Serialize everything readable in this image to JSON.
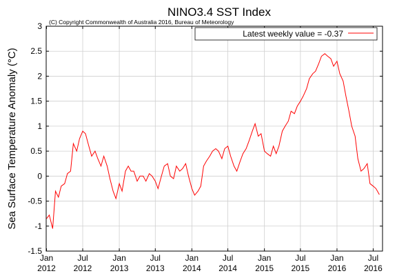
{
  "chart_data": {
    "type": "line",
    "title": "NINO3.4 SST Index",
    "subtitle": "(C) Copyright Commonwealth of Australia 2016, Bureau of Meteorology",
    "xlabel": "",
    "ylabel": "Sea Surface Temperature Anomaly",
    "ylabel_unit": "(°C)",
    "ylim": [
      -1.5,
      3
    ],
    "y_ticks": [
      "-1.5",
      "-1",
      "-0.5",
      "0",
      "0.5",
      "1",
      "1.5",
      "2",
      "2.5",
      "3"
    ],
    "x_ticks": [
      {
        "month": "Jan",
        "year": "2012"
      },
      {
        "month": "Jul",
        "year": "2012"
      },
      {
        "month": "Jan",
        "year": "2013"
      },
      {
        "month": "Jul",
        "year": "2013"
      },
      {
        "month": "Jan",
        "year": "2014"
      },
      {
        "month": "Jul",
        "year": "2014"
      },
      {
        "month": "Jan",
        "year": "2015"
      },
      {
        "month": "Jul",
        "year": "2015"
      },
      {
        "month": "Jan",
        "year": "2016"
      },
      {
        "month": "Jul",
        "year": "2016"
      }
    ],
    "grid": true,
    "legend": {
      "placement": "top-right",
      "label": "Latest weekly value = -0.37"
    },
    "series": [
      {
        "color": "#ff0000",
        "x": [
          "2012-01-01",
          "2012-01-15",
          "2012-02-01",
          "2012-02-15",
          "2012-03-01",
          "2012-03-15",
          "2012-04-01",
          "2012-04-15",
          "2012-05-01",
          "2012-05-15",
          "2012-06-01",
          "2012-06-15",
          "2012-07-01",
          "2012-07-15",
          "2012-08-01",
          "2012-08-15",
          "2012-09-01",
          "2012-09-15",
          "2012-10-01",
          "2012-10-15",
          "2012-11-01",
          "2012-11-15",
          "2012-12-01",
          "2012-12-15",
          "2013-01-01",
          "2013-01-15",
          "2013-02-01",
          "2013-02-15",
          "2013-03-01",
          "2013-03-15",
          "2013-04-01",
          "2013-04-15",
          "2013-05-01",
          "2013-05-15",
          "2013-06-01",
          "2013-06-15",
          "2013-07-01",
          "2013-07-15",
          "2013-08-01",
          "2013-08-15",
          "2013-09-01",
          "2013-09-15",
          "2013-10-01",
          "2013-10-15",
          "2013-11-01",
          "2013-11-15",
          "2013-12-01",
          "2013-12-15",
          "2014-01-01",
          "2014-01-15",
          "2014-02-01",
          "2014-02-15",
          "2014-03-01",
          "2014-03-15",
          "2014-04-01",
          "2014-04-15",
          "2014-05-01",
          "2014-05-15",
          "2014-06-01",
          "2014-06-15",
          "2014-07-01",
          "2014-07-15",
          "2014-08-01",
          "2014-08-15",
          "2014-09-01",
          "2014-09-15",
          "2014-10-01",
          "2014-10-15",
          "2014-11-01",
          "2014-11-15",
          "2014-12-01",
          "2014-12-15",
          "2015-01-01",
          "2015-01-15",
          "2015-02-01",
          "2015-02-15",
          "2015-03-01",
          "2015-03-15",
          "2015-04-01",
          "2015-04-15",
          "2015-05-01",
          "2015-05-15",
          "2015-06-01",
          "2015-06-15",
          "2015-07-01",
          "2015-07-15",
          "2015-08-01",
          "2015-08-15",
          "2015-09-01",
          "2015-09-15",
          "2015-10-01",
          "2015-10-15",
          "2015-11-01",
          "2015-11-15",
          "2015-12-01",
          "2015-12-15",
          "2016-01-01",
          "2016-01-15",
          "2016-02-01",
          "2016-02-15",
          "2016-03-01",
          "2016-03-15",
          "2016-04-01",
          "2016-04-15",
          "2016-05-01",
          "2016-05-15",
          "2016-06-01",
          "2016-06-15",
          "2016-07-01",
          "2016-07-15",
          "2016-08-01"
        ],
        "y": [
          -0.85,
          -0.78,
          -1.05,
          -0.3,
          -0.42,
          -0.2,
          -0.15,
          0.05,
          0.1,
          0.65,
          0.5,
          0.75,
          0.9,
          0.85,
          0.6,
          0.4,
          0.5,
          0.35,
          0.2,
          0.4,
          0.2,
          -0.05,
          -0.3,
          -0.45,
          -0.15,
          -0.3,
          0.1,
          0.2,
          0.1,
          0.1,
          -0.1,
          0.0,
          0.0,
          -0.1,
          0.05,
          0.0,
          -0.1,
          -0.25,
          0.0,
          0.2,
          0.25,
          0.0,
          -0.05,
          0.2,
          0.1,
          0.15,
          0.25,
          0.0,
          -0.25,
          -0.38,
          -0.3,
          -0.2,
          0.2,
          0.3,
          0.4,
          0.5,
          0.55,
          0.5,
          0.35,
          0.55,
          0.6,
          0.4,
          0.2,
          0.1,
          0.3,
          0.45,
          0.55,
          0.7,
          0.9,
          1.05,
          0.8,
          0.85,
          0.5,
          0.45,
          0.4,
          0.6,
          0.45,
          0.6,
          0.9,
          1.0,
          1.1,
          1.3,
          1.25,
          1.4,
          1.5,
          1.6,
          1.75,
          1.95,
          2.05,
          2.1,
          2.25,
          2.4,
          2.45,
          2.4,
          2.35,
          2.2,
          2.3,
          2.05,
          1.9,
          1.6,
          1.3,
          1.0,
          0.8,
          0.35,
          0.1,
          0.15,
          0.25,
          -0.15,
          -0.2,
          -0.25,
          -0.37
        ]
      }
    ]
  }
}
